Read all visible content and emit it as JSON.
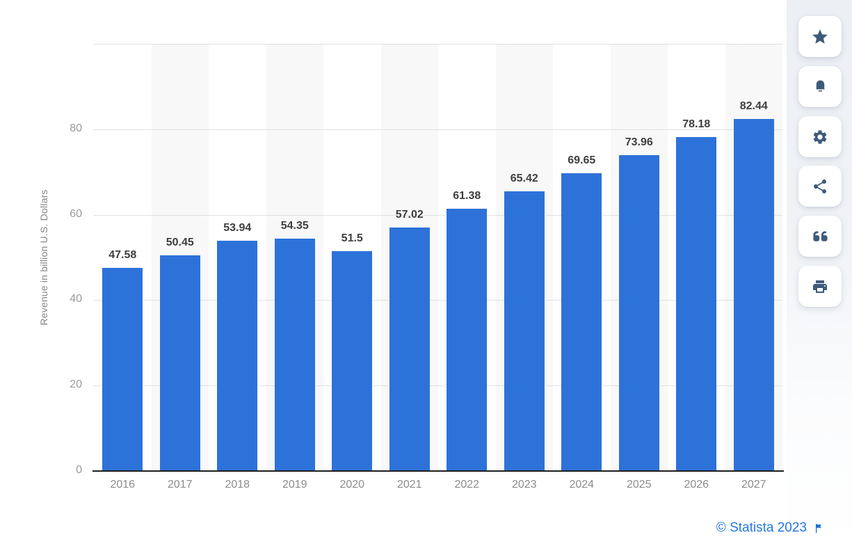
{
  "chart_data": {
    "type": "bar",
    "title": "",
    "xlabel": "",
    "ylabel": "Revenue in billion U.S. Dollars",
    "categories": [
      "2016",
      "2017",
      "2018",
      "2019",
      "2020",
      "2021",
      "2022",
      "2023",
      "2024",
      "2025",
      "2026",
      "2027"
    ],
    "values": [
      47.58,
      50.45,
      53.94,
      54.35,
      51.5,
      57.02,
      61.38,
      65.42,
      69.65,
      73.96,
      78.18,
      82.44
    ],
    "value_labels": [
      "47.58",
      "50.45",
      "53.94",
      "54.35",
      "51.5",
      "57.02",
      "61.38",
      "65.42",
      "69.65",
      "73.96",
      "78.18",
      "82.44"
    ],
    "ylim": [
      0,
      100
    ],
    "yticks": [
      0,
      20,
      40,
      60,
      80
    ],
    "grid": "horizontal-dotted",
    "legend": "none",
    "bar_color": "#2d72d9",
    "column_stripe_color": "#f8f8f9"
  },
  "toolbar": {
    "icon_color": "#3d5a7a",
    "buttons": [
      {
        "id": "favorite-button",
        "icon": "star-icon"
      },
      {
        "id": "alerts-button",
        "icon": "bell-icon"
      },
      {
        "id": "settings-button",
        "icon": "gear-icon"
      },
      {
        "id": "share-button",
        "icon": "share-icon"
      },
      {
        "id": "cite-button",
        "icon": "quote-icon"
      },
      {
        "id": "print-button",
        "icon": "print-icon"
      }
    ]
  },
  "footer": {
    "copyright": "© Statista 2023",
    "flag_icon": "flag-icon",
    "link_color": "#2178de"
  }
}
